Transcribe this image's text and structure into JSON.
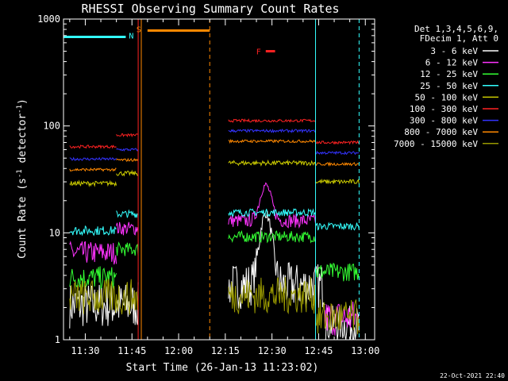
{
  "chart_data": {
    "type": "line",
    "title": "RHESSI Observing Summary Count Rates",
    "xlabel": "Start Time (26-Jan-13 11:23:02)",
    "ylabel": "Count Rate (s⁻¹ detector⁻¹)",
    "ylabel_main": "Count Rate (s",
    "ylabel_sup1": "-1",
    "ylabel_mid": " detector",
    "ylabel_sup2": "-1",
    "ylabel_end": ")",
    "y_scale": "log",
    "ylim": [
      1,
      1000
    ],
    "xlim": [
      "11:23",
      "13:03"
    ],
    "x_ticks": [
      "11:30",
      "11:45",
      "12:00",
      "12:15",
      "12:30",
      "12:45",
      "13:00"
    ],
    "y_ticks": [
      "1",
      "10",
      "100",
      "1000"
    ],
    "timestamp": "22-Oct-2021 22:40",
    "legend_header": [
      "Det 1,3,4,5,6,9,",
      "FDecim 1, Att 0"
    ],
    "legend_placement": "right",
    "series": [
      {
        "name": "3 - 6 keV",
        "color": "#ffffff",
        "segments": [
          {
            "t0": "11:25",
            "t1": "11:47",
            "base": 2.1,
            "jitter": 0.5
          },
          {
            "t0": "12:16",
            "t1": "12:47",
            "base": 3.2,
            "jitter": 0.5,
            "peak": {
              "t": "12:28",
              "v": 15
            }
          },
          {
            "t0": "12:47",
            "t1": "12:58",
            "base": 1.4,
            "jitter": 0.4
          }
        ]
      },
      {
        "name": "6 - 12 keV",
        "color": "#ff33ff",
        "segments": [
          {
            "t0": "11:25",
            "t1": "11:40",
            "base": 6.5,
            "jitter": 0.25
          },
          {
            "t0": "11:40",
            "t1": "11:47",
            "base": 11,
            "jitter": 0.15
          },
          {
            "t0": "12:16",
            "t1": "12:44",
            "base": 13,
            "jitter": 0.15,
            "peak": {
              "t": "12:28",
              "v": 28
            }
          },
          {
            "t0": "12:47",
            "t1": "12:58",
            "base": 1.6,
            "jitter": 0.4
          }
        ]
      },
      {
        "name": "12 - 25 keV",
        "color": "#33ff33",
        "segments": [
          {
            "t0": "11:25",
            "t1": "11:40",
            "base": 3.8,
            "jitter": 0.25
          },
          {
            "t0": "11:40",
            "t1": "11:47",
            "base": 7,
            "jitter": 0.15
          },
          {
            "t0": "12:16",
            "t1": "12:44",
            "base": 9.2,
            "jitter": 0.12
          },
          {
            "t0": "12:44",
            "t1": "12:58",
            "base": 4.3,
            "jitter": 0.2
          }
        ]
      },
      {
        "name": "25 - 50 keV",
        "color": "#33ffff",
        "segments": [
          {
            "t0": "11:25",
            "t1": "11:40",
            "base": 10.5,
            "jitter": 0.1
          },
          {
            "t0": "11:40",
            "t1": "11:47",
            "base": 15,
            "jitter": 0.08
          },
          {
            "t0": "12:16",
            "t1": "12:44",
            "base": 15.5,
            "jitter": 0.08
          },
          {
            "t0": "12:44",
            "t1": "12:58",
            "base": 11.5,
            "jitter": 0.08
          }
        ]
      },
      {
        "name": "50 - 100 keV",
        "color": "#cccc00",
        "segments": [
          {
            "t0": "11:25",
            "t1": "11:40",
            "base": 29,
            "jitter": 0.05
          },
          {
            "t0": "11:40",
            "t1": "11:47",
            "base": 36,
            "jitter": 0.05
          },
          {
            "t0": "12:16",
            "t1": "12:44",
            "base": 45,
            "jitter": 0.05
          },
          {
            "t0": "12:44",
            "t1": "12:58",
            "base": 30,
            "jitter": 0.05
          }
        ]
      },
      {
        "name": "100 - 300 keV",
        "color": "#ff2222",
        "segments": [
          {
            "t0": "11:25",
            "t1": "11:40",
            "base": 64,
            "jitter": 0.03
          },
          {
            "t0": "11:40",
            "t1": "11:47",
            "base": 82,
            "jitter": 0.03
          },
          {
            "t0": "12:16",
            "t1": "12:44",
            "base": 112,
            "jitter": 0.03
          },
          {
            "t0": "12:44",
            "t1": "12:58",
            "base": 70,
            "jitter": 0.03
          }
        ]
      },
      {
        "name": "300 - 800 keV",
        "color": "#3333ff",
        "segments": [
          {
            "t0": "11:25",
            "t1": "11:40",
            "base": 49,
            "jitter": 0.03
          },
          {
            "t0": "11:40",
            "t1": "11:47",
            "base": 60,
            "jitter": 0.03
          },
          {
            "t0": "12:16",
            "t1": "12:44",
            "base": 90,
            "jitter": 0.03
          },
          {
            "t0": "12:44",
            "t1": "12:58",
            "base": 56,
            "jitter": 0.03
          }
        ]
      },
      {
        "name": "800 - 7000 keV",
        "color": "#ff8800",
        "segments": [
          {
            "t0": "11:25",
            "t1": "11:40",
            "base": 39,
            "jitter": 0.03
          },
          {
            "t0": "11:40",
            "t1": "11:47",
            "base": 48,
            "jitter": 0.03
          },
          {
            "t0": "12:16",
            "t1": "12:44",
            "base": 72,
            "jitter": 0.03
          },
          {
            "t0": "12:44",
            "t1": "12:58",
            "base": 44,
            "jitter": 0.03
          }
        ]
      },
      {
        "name": "7000 - 15000 keV",
        "color": "#999900",
        "segments": [
          {
            "t0": "11:25",
            "t1": "11:47",
            "base": 2.5,
            "jitter": 0.4
          },
          {
            "t0": "12:16",
            "t1": "12:44",
            "base": 2.6,
            "jitter": 0.4
          },
          {
            "t0": "12:44",
            "t1": "12:58",
            "base": 1.6,
            "jitter": 0.4
          }
        ]
      }
    ],
    "annotations": [
      {
        "label": "N",
        "color": "#33ffff",
        "t0": "11:23",
        "t1": "11:43",
        "level": 680,
        "boundaries": [
          "11:43",
          "12:44",
          "12:58"
        ]
      },
      {
        "label": "S",
        "color": "#ff8800",
        "t0": "11:50",
        "t1": "12:10",
        "level": 780,
        "boundaries": [
          "11:48",
          "12:10"
        ]
      },
      {
        "label": "F",
        "color": "#ff2222",
        "t0": "12:28",
        "t1": "12:31",
        "level": 500
      }
    ],
    "markers": [
      {
        "t": "11:47",
        "color": "#ff2222"
      },
      {
        "t": "11:48",
        "color": "#ff8800"
      },
      {
        "t": "12:10",
        "color": "#ff8800",
        "dashed": true
      },
      {
        "t": "12:44",
        "color": "#33ffff"
      },
      {
        "t": "12:58",
        "color": "#33ffff",
        "dashed": true
      }
    ]
  }
}
